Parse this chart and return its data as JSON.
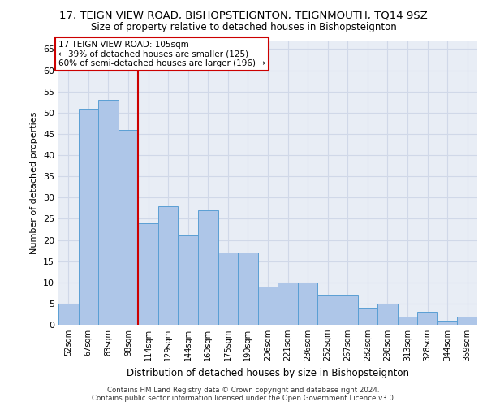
{
  "title": "17, TEIGN VIEW ROAD, BISHOPSTEIGNTON, TEIGNMOUTH, TQ14 9SZ",
  "subtitle": "Size of property relative to detached houses in Bishopsteignton",
  "xlabel": "Distribution of detached houses by size in Bishopsteignton",
  "ylabel": "Number of detached properties",
  "categories": [
    "52sqm",
    "67sqm",
    "83sqm",
    "98sqm",
    "114sqm",
    "129sqm",
    "144sqm",
    "160sqm",
    "175sqm",
    "190sqm",
    "206sqm",
    "221sqm",
    "236sqm",
    "252sqm",
    "267sqm",
    "282sqm",
    "298sqm",
    "313sqm",
    "328sqm",
    "344sqm",
    "359sqm"
  ],
  "values": [
    5,
    51,
    53,
    46,
    24,
    28,
    21,
    27,
    17,
    17,
    9,
    10,
    10,
    7,
    7,
    4,
    5,
    2,
    3,
    1,
    2
  ],
  "bar_color": "#aec6e8",
  "bar_edgecolor": "#5a9fd4",
  "redline_x": 3.5,
  "annotation_title": "17 TEIGN VIEW ROAD: 105sqm",
  "annotation_line1": "← 39% of detached houses are smaller (125)",
  "annotation_line2": "60% of semi-detached houses are larger (196) →",
  "annotation_box_color": "#ffffff",
  "annotation_box_edgecolor": "#cc0000",
  "redline_color": "#cc0000",
  "ylim": [
    0,
    67
  ],
  "yticks": [
    0,
    5,
    10,
    15,
    20,
    25,
    30,
    35,
    40,
    45,
    50,
    55,
    60,
    65
  ],
  "grid_color": "#d0d8e8",
  "background_color": "#e8edf5",
  "footer_line1": "Contains HM Land Registry data © Crown copyright and database right 2024.",
  "footer_line2": "Contains public sector information licensed under the Open Government Licence v3.0."
}
